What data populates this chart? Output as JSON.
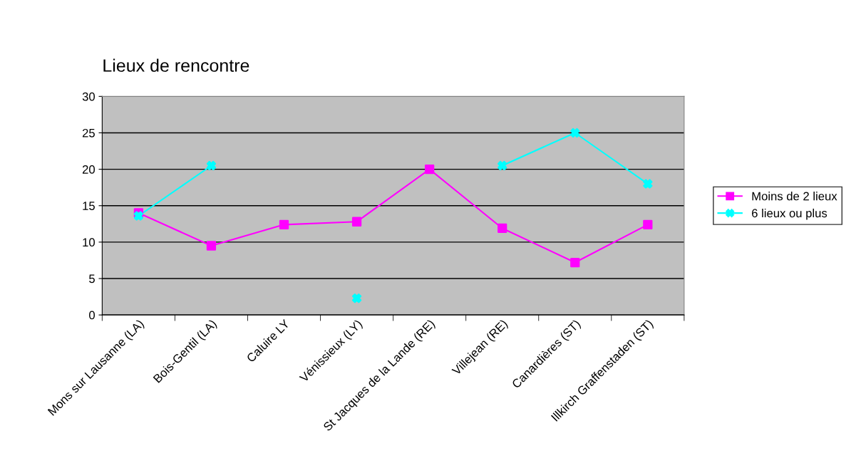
{
  "chart_data": {
    "type": "line",
    "title": "Lieux de rencontre",
    "categories": [
      "Mons sur Lausanne (LA)",
      "Bois-Gentil (LA)",
      "Caluire LY",
      "Vénissieux (LY)",
      "St Jacques de la Lande (RE)",
      "Villejean (RE)",
      "Canardières (ST)",
      "Illkirch Graffenstaden (ST)"
    ],
    "series": [
      {
        "name": "Moins de 2 lieux",
        "color": "#ff00ff",
        "marker": "square",
        "values": [
          14,
          9.5,
          12.4,
          12.8,
          20,
          11.9,
          7.2,
          12.4
        ]
      },
      {
        "name": "6 lieux ou plus",
        "color": "#00ffff",
        "marker": "cross",
        "values": [
          13.6,
          20.5,
          null,
          2.3,
          null,
          20.5,
          25,
          18
        ]
      }
    ],
    "ylim": [
      0,
      30
    ],
    "yticks": [
      0,
      5,
      10,
      15,
      20,
      25,
      30
    ],
    "grid": "y",
    "legend": "right",
    "line_style": "solid"
  }
}
